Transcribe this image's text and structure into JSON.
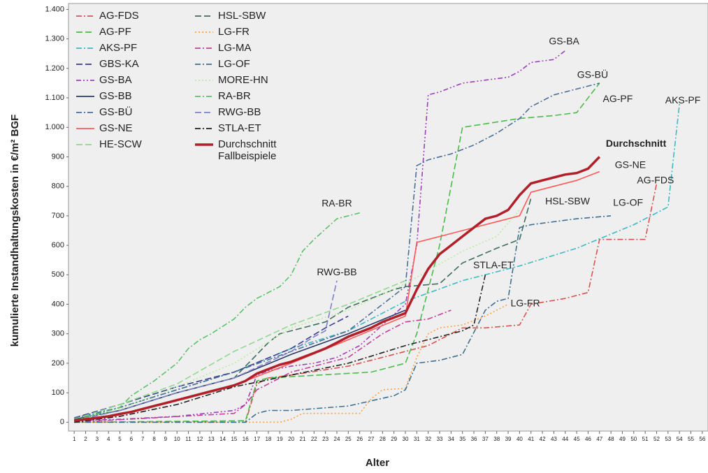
{
  "chart_data": {
    "type": "line",
    "ylabel": "kumulierte Instandhaltungskosten in €/m² BGF",
    "xlabel": "Alter",
    "xlim": [
      0.5,
      56.5
    ],
    "xticks": [
      1,
      2,
      3,
      4,
      5,
      6,
      7,
      8,
      9,
      10,
      11,
      12,
      13,
      14,
      15,
      16,
      17,
      18,
      19,
      20,
      21,
      22,
      23,
      24,
      25,
      26,
      27,
      28,
      29,
      30,
      31,
      32,
      33,
      34,
      35,
      36,
      37,
      38,
      39,
      40,
      41,
      42,
      43,
      44,
      45,
      46,
      47,
      48,
      49,
      50,
      51,
      52,
      53,
      54,
      55,
      56
    ],
    "ylim": [
      -30,
      1420
    ],
    "yticks": [
      0,
      100,
      200,
      300,
      400,
      500,
      600,
      700,
      800,
      900,
      {
        "value": 1000,
        "label": "1.000"
      },
      {
        "value": 1100,
        "label": "1.100"
      },
      {
        "value": 1200,
        "label": "1.200"
      },
      {
        "value": 1300,
        "label": "1.300"
      },
      {
        "value": 1400,
        "label": "1.400"
      }
    ],
    "series": [
      {
        "name": "AG-FDS",
        "color": "#d9534f",
        "line_style": "dash-dot",
        "x": [
          1,
          16,
          17,
          18,
          20,
          25,
          30,
          32,
          35,
          37,
          40,
          41,
          44,
          46,
          47,
          51,
          52
        ],
        "values": [
          0,
          0,
          130,
          150,
          160,
          190,
          240,
          260,
          320,
          320,
          330,
          400,
          420,
          440,
          620,
          620,
          810
        ]
      },
      {
        "name": "AG-PF",
        "color": "#4cbb4c",
        "line_style": "dash",
        "x": [
          1,
          16,
          17,
          18,
          27,
          30,
          31,
          32,
          33,
          34,
          35,
          40,
          43,
          45,
          47
        ],
        "values": [
          0,
          5,
          140,
          150,
          170,
          200,
          300,
          450,
          600,
          800,
          1000,
          1030,
          1040,
          1050,
          1150
        ]
      },
      {
        "name": "AKS-PF",
        "color": "#3fb8c0",
        "line_style": "dash-dot",
        "x": [
          1,
          5,
          10,
          15,
          20,
          25,
          30,
          35,
          40,
          45,
          50,
          53,
          54
        ],
        "values": [
          10,
          50,
          110,
          170,
          250,
          310,
          410,
          480,
          530,
          590,
          670,
          730,
          1080
        ]
      },
      {
        "name": "GBS-KA",
        "color": "#3d3d8f",
        "line_style": "dash",
        "x": [
          1,
          5,
          10,
          15,
          20,
          23,
          25
        ],
        "values": [
          15,
          60,
          120,
          170,
          250,
          320,
          360
        ]
      },
      {
        "name": "GS-BA",
        "color": "#9b40b8",
        "line_style": "dash-dot-dot",
        "x": [
          1,
          5,
          10,
          15,
          16,
          17,
          18,
          20,
          22,
          24,
          26,
          28,
          30,
          31,
          32,
          33,
          35,
          37,
          39,
          40,
          41,
          43,
          44
        ],
        "values": [
          5,
          10,
          20,
          40,
          60,
          160,
          175,
          190,
          200,
          220,
          260,
          330,
          400,
          600,
          1110,
          1120,
          1150,
          1160,
          1170,
          1190,
          1220,
          1230,
          1260
        ]
      },
      {
        "name": "GS-BB",
        "color": "#2b3a6b",
        "line_style": "solid",
        "x": [
          1,
          5,
          10,
          15,
          20,
          25,
          30
        ],
        "values": [
          10,
          40,
          100,
          150,
          230,
          300,
          380
        ]
      },
      {
        "name": "GS-BÜ",
        "color": "#4b6e96",
        "line_style": "dash-dot",
        "x": [
          1,
          5,
          10,
          15,
          20,
          25,
          30,
          31,
          32,
          34,
          36,
          38,
          40,
          41,
          43,
          45,
          47
        ],
        "values": [
          15,
          50,
          110,
          170,
          240,
          310,
          460,
          870,
          890,
          910,
          940,
          980,
          1030,
          1070,
          1110,
          1130,
          1150
        ]
      },
      {
        "name": "GS-NE",
        "color": "#ff5a5a",
        "line_style": "solid",
        "x": [
          1,
          5,
          10,
          15,
          20,
          25,
          30,
          31,
          32,
          35,
          38,
          40,
          41,
          45,
          47
        ],
        "values": [
          5,
          25,
          75,
          125,
          200,
          280,
          360,
          610,
          620,
          650,
          680,
          700,
          780,
          820,
          850
        ]
      },
      {
        "name": "HE-SCW",
        "color": "#8fd88f",
        "line_style": "dash",
        "x": [
          1,
          5,
          10,
          15,
          20,
          25,
          30
        ],
        "values": [
          10,
          60,
          130,
          240,
          330,
          400,
          480
        ]
      },
      {
        "name": "HSL-SBW",
        "color": "#3c6e5a",
        "line_style": "dash",
        "x": [
          1,
          5,
          10,
          15,
          17,
          18,
          19,
          20,
          23,
          25,
          27,
          29,
          30,
          33,
          35,
          38,
          40,
          41
        ],
        "values": [
          10,
          40,
          100,
          150,
          230,
          270,
          300,
          310,
          340,
          390,
          420,
          450,
          460,
          470,
          540,
          590,
          620,
          760
        ]
      },
      {
        "name": "LG-FR",
        "color": "#ffa040",
        "line_style": "dot",
        "x": [
          1,
          19,
          20,
          21,
          26,
          27,
          28,
          30,
          31,
          32,
          33,
          35,
          37,
          39
        ],
        "values": [
          0,
          0,
          10,
          30,
          30,
          80,
          110,
          115,
          220,
          300,
          320,
          330,
          360,
          400
        ]
      },
      {
        "name": "LG-MA",
        "color": "#c0409a",
        "line_style": "dash-dot",
        "x": [
          1,
          15,
          16,
          17,
          20,
          25,
          28,
          30,
          32,
          34
        ],
        "values": [
          0,
          30,
          60,
          110,
          170,
          220,
          300,
          340,
          350,
          380
        ]
      },
      {
        "name": "LG-OF",
        "color": "#3f6f8f",
        "line_style": "dash-dot",
        "x": [
          1,
          16,
          17,
          18,
          20,
          25,
          29,
          30,
          31,
          33,
          35,
          37,
          38,
          39,
          40,
          41,
          45,
          48
        ],
        "values": [
          0,
          0,
          30,
          40,
          40,
          55,
          90,
          110,
          200,
          210,
          230,
          380,
          410,
          420,
          660,
          670,
          690,
          700
        ]
      },
      {
        "name": "MORE-HN",
        "color": "#b8eca0",
        "line_style": "dot",
        "x": [
          1,
          5,
          10,
          15,
          20,
          25,
          30,
          35,
          38,
          40
        ],
        "values": [
          5,
          45,
          120,
          200,
          320,
          380,
          470,
          580,
          630,
          720
        ]
      },
      {
        "name": "RA-BR",
        "color": "#5cc06c",
        "line_style": "dash-dot",
        "x": [
          1,
          5,
          6,
          8,
          10,
          11,
          12,
          13,
          15,
          16,
          17,
          19,
          20,
          21,
          22,
          24,
          26
        ],
        "values": [
          5,
          50,
          90,
          140,
          200,
          250,
          280,
          300,
          350,
          390,
          420,
          460,
          500,
          580,
          620,
          690,
          710
        ]
      },
      {
        "name": "RWG-BB",
        "color": "#8080c8",
        "line_style": "dash",
        "x": [
          1,
          5,
          10,
          15,
          20,
          22,
          23,
          24
        ],
        "values": [
          5,
          40,
          100,
          150,
          240,
          290,
          310,
          480
        ]
      },
      {
        "name": "STLA-ET",
        "color": "#222222",
        "line_style": "dash-dot",
        "x": [
          1,
          5,
          10,
          15,
          20,
          25,
          30,
          35,
          36,
          37
        ],
        "values": [
          0,
          20,
          60,
          120,
          160,
          200,
          260,
          310,
          330,
          500
        ]
      },
      {
        "name": "Durchschnitt Fallbeispiele",
        "color": "#b0202a",
        "line_style": "solid-thick",
        "x": [
          1,
          2,
          3,
          4,
          5,
          6,
          7,
          8,
          9,
          10,
          11,
          12,
          13,
          14,
          15,
          16,
          17,
          18,
          19,
          20,
          21,
          22,
          23,
          24,
          25,
          26,
          27,
          28,
          29,
          30,
          31,
          32,
          33,
          34,
          35,
          36,
          37,
          38,
          39,
          40,
          41,
          42,
          43,
          44,
          45,
          46,
          47
        ],
        "values": [
          5,
          10,
          15,
          20,
          28,
          35,
          45,
          55,
          65,
          75,
          85,
          95,
          105,
          115,
          125,
          140,
          165,
          180,
          195,
          205,
          220,
          235,
          250,
          270,
          290,
          305,
          320,
          340,
          355,
          370,
          450,
          520,
          570,
          600,
          630,
          660,
          690,
          700,
          720,
          770,
          810,
          820,
          830,
          840,
          845,
          860,
          900
        ]
      }
    ],
    "annotations": [
      {
        "text": "GS-BA",
        "x": 43.9,
        "y": 1290
      },
      {
        "text": "GS-BÜ",
        "x": 46.4,
        "y": 1176
      },
      {
        "text": "AG-PF",
        "x": 48.6,
        "y": 1095
      },
      {
        "text": "AKS-PF",
        "x": 54.3,
        "y": 1090
      },
      {
        "text": "Durchschnitt",
        "x": 50.2,
        "y": 943,
        "weight": "bold"
      },
      {
        "text": "GS-NE",
        "x": 49.7,
        "y": 871
      },
      {
        "text": "AG-FDS",
        "x": 51.9,
        "y": 819
      },
      {
        "text": "HSL-SBW",
        "x": 44.2,
        "y": 748
      },
      {
        "text": "LG-OF",
        "x": 49.5,
        "y": 743
      },
      {
        "text": "RA-BR",
        "x": 24.0,
        "y": 740
      },
      {
        "text": "RWG-BB",
        "x": 24.0,
        "y": 507
      },
      {
        "text": "STLA-ET",
        "x": 37.7,
        "y": 531
      },
      {
        "text": "LG-FR",
        "x": 40.5,
        "y": 402
      }
    ]
  }
}
